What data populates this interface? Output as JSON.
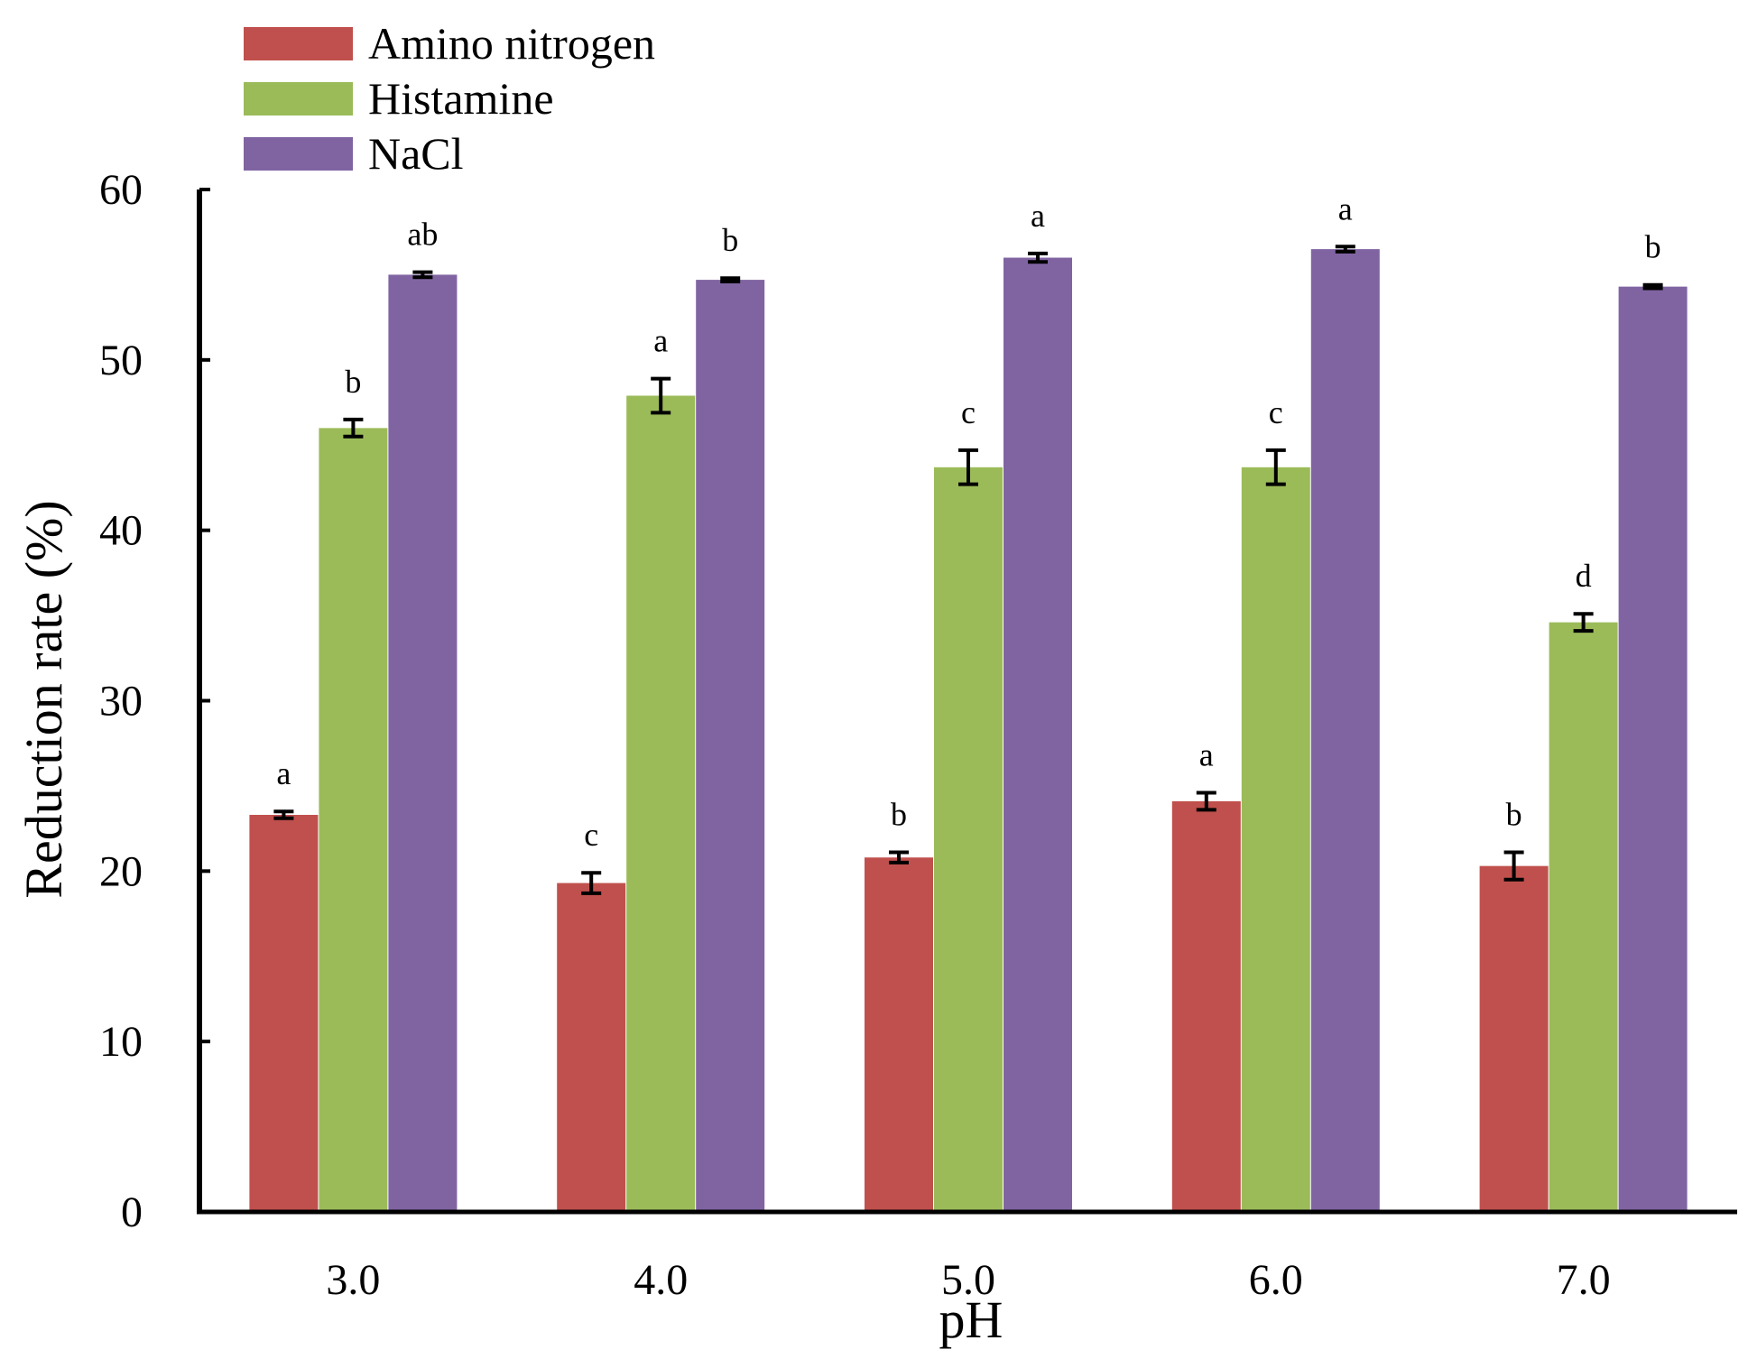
{
  "chart_data": {
    "type": "bar",
    "title": "",
    "xlabel": "pH",
    "ylabel": "Reduction rate (%)",
    "ylim": [
      0,
      60
    ],
    "yticks": [
      0,
      10,
      20,
      30,
      40,
      50,
      60
    ],
    "categories": [
      "3.0",
      "4.0",
      "5.0",
      "6.0",
      "7.0"
    ],
    "legend_position": "top-left",
    "grid": false,
    "series": [
      {
        "name": "Amino nitrogen",
        "color": "#C0504D",
        "values": [
          23.3,
          19.3,
          20.8,
          24.1,
          20.3
        ],
        "errors": [
          0.2,
          0.6,
          0.3,
          0.5,
          0.8
        ],
        "labels": [
          "a",
          "c",
          "b",
          "a",
          "b"
        ]
      },
      {
        "name": "Histamine",
        "color": "#9BBB59",
        "values": [
          46.0,
          47.9,
          43.7,
          43.7,
          34.6
        ],
        "errors": [
          0.5,
          1.0,
          1.0,
          1.0,
          0.5
        ],
        "labels": [
          "b",
          "a",
          "c",
          "c",
          "d"
        ]
      },
      {
        "name": "NaCl",
        "color": "#8064A2",
        "values": [
          55.0,
          54.7,
          56.0,
          56.5,
          54.3
        ],
        "errors": [
          0.15,
          0.1,
          0.25,
          0.15,
          0.1
        ],
        "labels": [
          "ab",
          "b",
          "a",
          "a",
          "b"
        ]
      }
    ]
  }
}
